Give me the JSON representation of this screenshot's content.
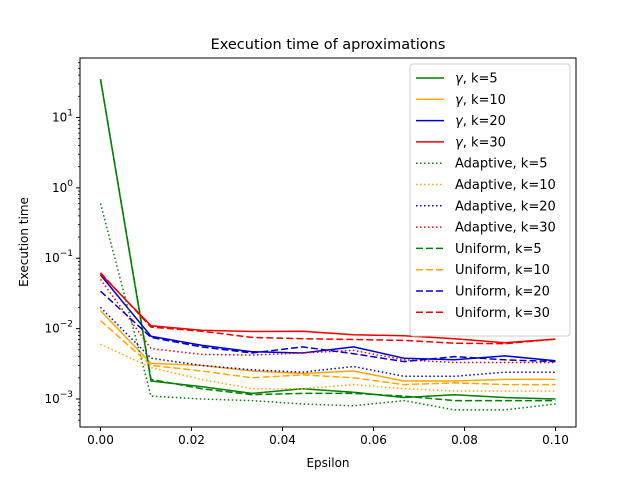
{
  "chart_data": {
    "type": "line",
    "title": "Execution time of aproximations",
    "xlabel": "Epsilon",
    "ylabel": "Execution time",
    "xlim": [
      -0.0045,
      0.1045
    ],
    "ylim": [
      0.0004,
      70
    ],
    "yscale": "log",
    "x_ticks": [
      0.0,
      0.02,
      0.04,
      0.06,
      0.08,
      0.1
    ],
    "x_tick_labels": [
      "0.00",
      "0.02",
      "0.04",
      "0.06",
      "0.08",
      "0.10"
    ],
    "y_ticks": [
      {
        "value": 0.001,
        "base": "10",
        "exp": "−3"
      },
      {
        "value": 0.01,
        "base": "10",
        "exp": "−2"
      },
      {
        "value": 0.1,
        "base": "10",
        "exp": "−1"
      },
      {
        "value": 1,
        "base": "10",
        "exp": "0"
      },
      {
        "value": 10,
        "base": "10",
        "exp": "1"
      }
    ],
    "grid": false,
    "legend_position": "upper right",
    "x": [
      0.0,
      0.0111,
      0.0222,
      0.0333,
      0.0444,
      0.0556,
      0.0667,
      0.0778,
      0.0889,
      0.1
    ],
    "series": [
      {
        "name": "γ, k=5",
        "name_prefix": "γ",
        "name_suffix": ", k=5",
        "color": "#008000",
        "style": "solid",
        "values": [
          35,
          0.0018,
          0.0015,
          0.0012,
          0.0014,
          0.00125,
          0.00105,
          0.00115,
          0.00105,
          0.001
        ]
      },
      {
        "name": "γ, k=10",
        "name_prefix": "γ",
        "name_suffix": ", k=10",
        "color": "#ffa500",
        "style": "solid",
        "values": [
          0.018,
          0.0032,
          0.003,
          0.0025,
          0.0023,
          0.0025,
          0.0018,
          0.0018,
          0.0019,
          0.0019
        ]
      },
      {
        "name": "γ, k=20",
        "name_prefix": "γ",
        "name_suffix": ", k=20",
        "color": "#0000cc",
        "style": "solid",
        "values": [
          0.058,
          0.0078,
          0.0058,
          0.0047,
          0.0045,
          0.0055,
          0.0038,
          0.0036,
          0.0041,
          0.0035
        ]
      },
      {
        "name": "γ, k=30",
        "name_prefix": "γ",
        "name_suffix": ", k=30",
        "color": "#ee0000",
        "style": "solid",
        "values": [
          0.06,
          0.011,
          0.0095,
          0.0091,
          0.0092,
          0.0082,
          0.0079,
          0.0072,
          0.0063,
          0.0071
        ]
      },
      {
        "name": "Adaptive, k=5",
        "color": "#008000",
        "style": "dotted",
        "values": [
          0.6,
          0.0011,
          0.001,
          0.00095,
          0.00085,
          0.0008,
          0.00095,
          0.0007,
          0.0007,
          0.00085
        ]
      },
      {
        "name": "Adaptive, k=10",
        "color": "#ffa500",
        "style": "dotted",
        "values": [
          0.006,
          0.0028,
          0.0019,
          0.0014,
          0.0014,
          0.0016,
          0.0014,
          0.0013,
          0.0013,
          0.0013
        ]
      },
      {
        "name": "Adaptive, k=20",
        "color": "#0000cc",
        "style": "dotted",
        "values": [
          0.02,
          0.0038,
          0.003,
          0.0026,
          0.0024,
          0.0029,
          0.0021,
          0.0021,
          0.0024,
          0.0024
        ]
      },
      {
        "name": "Adaptive, k=30",
        "color": "#ee0000",
        "style": "dotted",
        "values": [
          0.05,
          0.0052,
          0.0043,
          0.0042,
          0.0045,
          0.0049,
          0.0036,
          0.0033,
          0.0033,
          0.0033
        ]
      },
      {
        "name": "Uniform, k=5",
        "color": "#008000",
        "style": "dashed",
        "values": [
          35,
          0.0019,
          0.0014,
          0.00115,
          0.0012,
          0.0012,
          0.0011,
          0.00095,
          0.00095,
          0.00095
        ]
      },
      {
        "name": "Uniform, k=10",
        "color": "#ffa500",
        "style": "dashed",
        "values": [
          0.013,
          0.003,
          0.0025,
          0.002,
          0.0022,
          0.002,
          0.0016,
          0.0017,
          0.0016,
          0.0016
        ]
      },
      {
        "name": "Uniform, k=20",
        "color": "#0000cc",
        "style": "dashed",
        "values": [
          0.034,
          0.0075,
          0.0055,
          0.0045,
          0.0055,
          0.0044,
          0.0034,
          0.004,
          0.0036,
          0.0034
        ]
      },
      {
        "name": "Uniform, k=30",
        "color": "#ee0000",
        "style": "dashed",
        "values": [
          0.062,
          0.0105,
          0.0092,
          0.0075,
          0.0072,
          0.007,
          0.0068,
          0.0062,
          0.0061,
          0.0071
        ]
      }
    ]
  }
}
